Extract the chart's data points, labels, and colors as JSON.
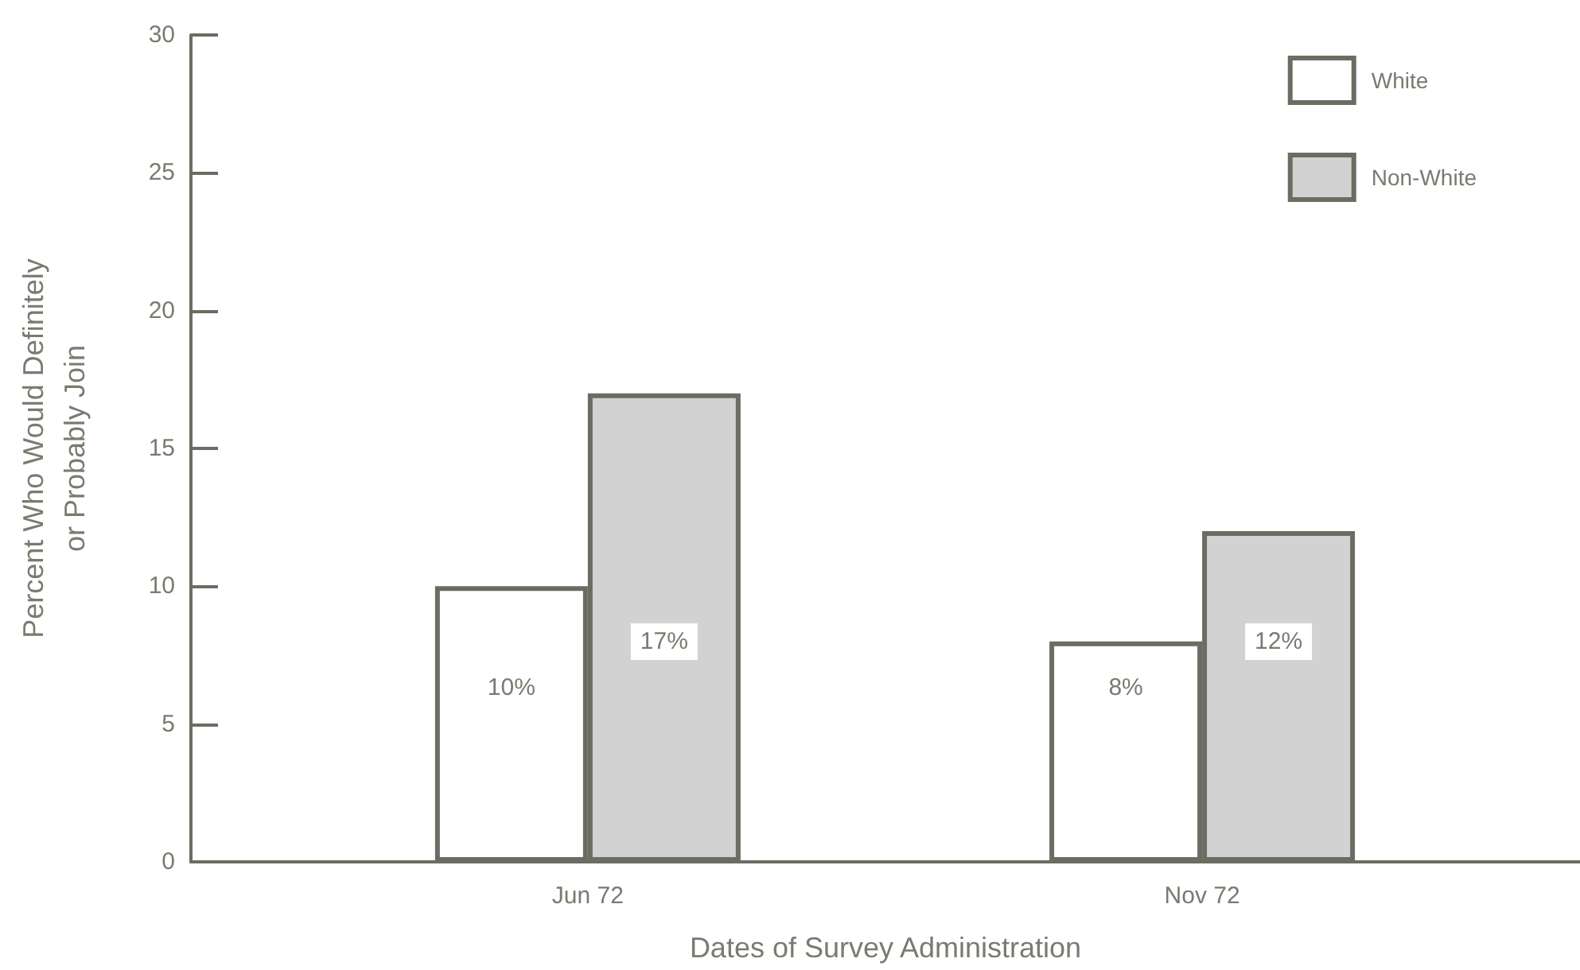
{
  "chart_data": {
    "type": "bar",
    "categories": [
      "Jun 72",
      "Nov 72"
    ],
    "series": [
      {
        "name": "White",
        "color": "#ffffff",
        "values": [
          10,
          8
        ],
        "value_labels": [
          "10%",
          "8%"
        ]
      },
      {
        "name": "Non-White",
        "color": "#d2d2d2",
        "values": [
          17,
          12
        ],
        "value_labels": [
          "17%",
          "12%"
        ]
      }
    ],
    "xlabel": "Dates of Survey Administration",
    "ylabel": "Percent Who Would Definitely or Probably Join",
    "ylim": [
      0,
      30
    ],
    "yticks": [
      0,
      5,
      10,
      15,
      20,
      25,
      30
    ],
    "grid": false,
    "legend": "top right"
  }
}
